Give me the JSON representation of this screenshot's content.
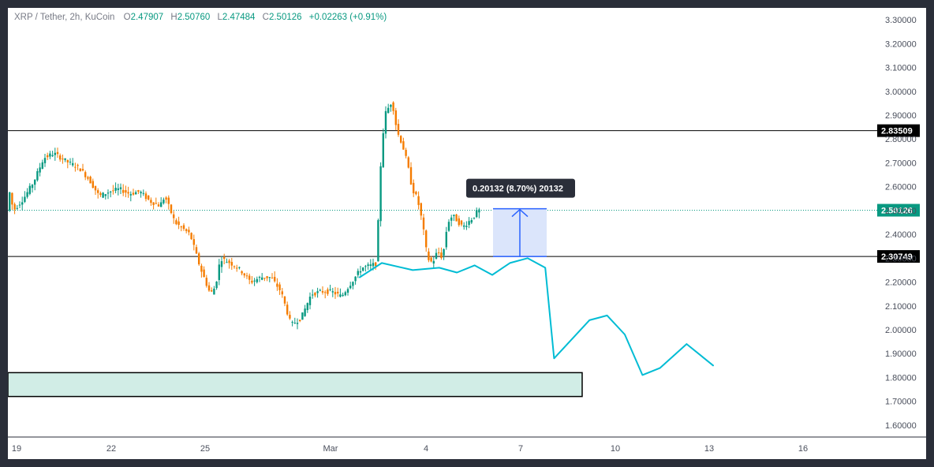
{
  "legend": {
    "symbol": "XRP / Tether, 2h, KuCoin",
    "o_label": "O",
    "o_value": "2.47907",
    "h_label": "H",
    "h_value": "2.50760",
    "l_label": "L",
    "l_value": "2.47484",
    "c_label": "C",
    "c_value": "2.50126",
    "change": "+0.02263 (+0.91%)"
  },
  "colors": {
    "up": "#089981",
    "down": "#f57c00",
    "drawing_curve": "#00bcd4",
    "zone_fill": "#d1ede6",
    "measure_fill": "#dbe5fb",
    "measure_line": "#2962ff",
    "last_price_line": "#089981"
  },
  "measure_tool": {
    "label": "0.20132 (8.70%) 20132"
  },
  "chart_data": {
    "type": "candlestick",
    "title": "XRP / Tether, 2h, KuCoin",
    "xlabel": "",
    "ylabel": "",
    "ylim": [
      1.55,
      3.35
    ],
    "y_ticks": [
      "3.30000",
      "3.20000",
      "3.10000",
      "3.00000",
      "2.90000",
      "2.80000",
      "2.70000",
      "2.60000",
      "2.50000",
      "2.40000",
      "2.30000",
      "2.20000",
      "2.10000",
      "2.00000",
      "1.90000",
      "1.80000",
      "1.70000",
      "1.60000"
    ],
    "x_ticks": [
      "19",
      "22",
      "25",
      "Mar",
      "4",
      "7",
      "10",
      "13",
      "16"
    ],
    "grid": false,
    "last_price": 2.50126,
    "horizontal_levels": [
      {
        "value": 2.83509,
        "label": "2.83509"
      },
      {
        "value": 2.30749,
        "label": "2.30749"
      }
    ],
    "last_price_label": "2.50126",
    "support_zone": {
      "from": 1.72,
      "to": 1.82
    },
    "ohlc_waypoints": [
      [
        0,
        2.6
      ],
      [
        2,
        2.5
      ],
      [
        6,
        2.55
      ],
      [
        10,
        2.62
      ],
      [
        14,
        2.72
      ],
      [
        18,
        2.74
      ],
      [
        24,
        2.7
      ],
      [
        28,
        2.68
      ],
      [
        32,
        2.63
      ],
      [
        36,
        2.56
      ],
      [
        40,
        2.58
      ],
      [
        44,
        2.59
      ],
      [
        48,
        2.57
      ],
      [
        52,
        2.58
      ],
      [
        56,
        2.54
      ],
      [
        60,
        2.52
      ],
      [
        62,
        2.56
      ],
      [
        66,
        2.45
      ],
      [
        72,
        2.4
      ],
      [
        76,
        2.26
      ],
      [
        80,
        2.15
      ],
      [
        82,
        2.18
      ],
      [
        84,
        2.3
      ],
      [
        88,
        2.28
      ],
      [
        92,
        2.25
      ],
      [
        96,
        2.2
      ],
      [
        100,
        2.22
      ],
      [
        104,
        2.22
      ],
      [
        108,
        2.16
      ],
      [
        112,
        2.02
      ],
      [
        116,
        2.05
      ],
      [
        120,
        2.15
      ],
      [
        124,
        2.16
      ],
      [
        128,
        2.16
      ],
      [
        132,
        2.14
      ],
      [
        136,
        2.2
      ],
      [
        140,
        2.26
      ],
      [
        144,
        2.27
      ],
      [
        146,
        2.28
      ],
      [
        147,
        2.62
      ],
      [
        149,
        2.9
      ],
      [
        152,
        2.96
      ],
      [
        154,
        2.83
      ],
      [
        156,
        2.78
      ],
      [
        158,
        2.7
      ],
      [
        160,
        2.59
      ],
      [
        162,
        2.55
      ],
      [
        164,
        2.45
      ],
      [
        166,
        2.3
      ],
      [
        168,
        2.28
      ],
      [
        170,
        2.33
      ],
      [
        172,
        2.3
      ],
      [
        174,
        2.45
      ],
      [
        176,
        2.48
      ],
      [
        180,
        2.43
      ],
      [
        184,
        2.47
      ],
      [
        186,
        2.5
      ]
    ],
    "drawing_path": [
      [
        2.22,
        0
      ],
      [
        2.28,
        5
      ],
      [
        2.25,
        12
      ],
      [
        2.26,
        18
      ],
      [
        2.24,
        22
      ],
      [
        2.27,
        26
      ],
      [
        2.23,
        30
      ],
      [
        2.28,
        34
      ],
      [
        2.3,
        38
      ],
      [
        2.26,
        42
      ],
      [
        1.88,
        44
      ],
      [
        2.04,
        52
      ],
      [
        2.06,
        56
      ],
      [
        1.98,
        60
      ],
      [
        1.81,
        64
      ],
      [
        1.84,
        68
      ],
      [
        1.94,
        74
      ],
      [
        1.85,
        80
      ]
    ]
  }
}
